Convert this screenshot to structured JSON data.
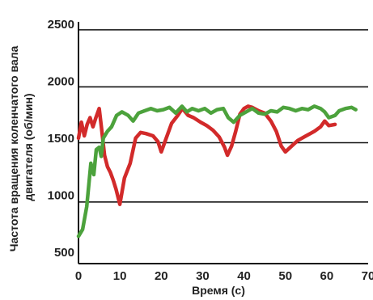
{
  "chart_data": {
    "type": "line",
    "xlabel": "Время (с)",
    "ylabel_lines": [
      "Частота вращения коленчатого вала",
      "двигателя (об/мин)"
    ],
    "xlim": [
      0,
      70
    ],
    "ylim": [
      400,
      2520
    ],
    "x_ticks": [
      0,
      10,
      20,
      30,
      40,
      50,
      60,
      70
    ],
    "y_tick_labels": [
      {
        "value": 2500,
        "label": "2500"
      },
      {
        "value": 2000,
        "label": "2000"
      },
      {
        "value": 1500,
        "label": "1500"
      },
      {
        "value": 1000,
        "label": "1000"
      },
      {
        "value": 500,
        "label": "500"
      }
    ],
    "gridlines": [
      2450,
      1950,
      1460,
      940
    ],
    "grid": true,
    "legend": "none",
    "series": [
      {
        "color": "#d22a2a",
        "points": [
          [
            0,
            1500
          ],
          [
            0.7,
            1640
          ],
          [
            1.4,
            1520
          ],
          [
            2.1,
            1620
          ],
          [
            2.8,
            1680
          ],
          [
            3.5,
            1600
          ],
          [
            4.2,
            1680
          ],
          [
            5.0,
            1760
          ],
          [
            5.6,
            1580
          ],
          [
            6.3,
            1350
          ],
          [
            7.0,
            1250
          ],
          [
            7.7,
            1200
          ],
          [
            8.4,
            1130
          ],
          [
            9.1,
            1050
          ],
          [
            10,
            920
          ],
          [
            11.1,
            1150
          ],
          [
            12.5,
            1280
          ],
          [
            13.8,
            1500
          ],
          [
            15,
            1550
          ],
          [
            16.3,
            1540
          ],
          [
            18,
            1520
          ],
          [
            19.2,
            1470
          ],
          [
            20,
            1380
          ],
          [
            21.1,
            1490
          ],
          [
            22.5,
            1630
          ],
          [
            24,
            1700
          ],
          [
            25.1,
            1760
          ],
          [
            26.5,
            1700
          ],
          [
            27.8,
            1680
          ],
          [
            29.5,
            1640
          ],
          [
            31,
            1610
          ],
          [
            32.5,
            1570
          ],
          [
            34,
            1510
          ],
          [
            35.3,
            1420
          ],
          [
            36,
            1350
          ],
          [
            37,
            1430
          ],
          [
            38,
            1560
          ],
          [
            39,
            1710
          ],
          [
            40,
            1760
          ],
          [
            41,
            1780
          ],
          [
            42,
            1770
          ],
          [
            43.5,
            1740
          ],
          [
            45,
            1720
          ],
          [
            46.5,
            1650
          ],
          [
            47.8,
            1560
          ],
          [
            49,
            1430
          ],
          [
            50,
            1380
          ],
          [
            51.5,
            1430
          ],
          [
            53,
            1480
          ],
          [
            55,
            1520
          ],
          [
            57,
            1560
          ],
          [
            58.5,
            1600
          ],
          [
            59.5,
            1650
          ],
          [
            60.5,
            1610
          ],
          [
            62,
            1620
          ]
        ]
      },
      {
        "color": "#4ca23c",
        "points": [
          [
            0,
            640
          ],
          [
            1,
            700
          ],
          [
            2,
            900
          ],
          [
            3,
            1280
          ],
          [
            3.7,
            1180
          ],
          [
            4.3,
            1400
          ],
          [
            5,
            1420
          ],
          [
            5.5,
            1340
          ],
          [
            6,
            1500
          ],
          [
            7,
            1560
          ],
          [
            8,
            1600
          ],
          [
            9.2,
            1700
          ],
          [
            10.5,
            1730
          ],
          [
            12,
            1700
          ],
          [
            13.2,
            1650
          ],
          [
            14.5,
            1720
          ],
          [
            16,
            1740
          ],
          [
            17.5,
            1760
          ],
          [
            19,
            1740
          ],
          [
            20.5,
            1750
          ],
          [
            22,
            1770
          ],
          [
            23.5,
            1720
          ],
          [
            25,
            1780
          ],
          [
            26.2,
            1730
          ],
          [
            27.5,
            1760
          ],
          [
            29,
            1740
          ],
          [
            30.5,
            1760
          ],
          [
            32,
            1720
          ],
          [
            33.5,
            1750
          ],
          [
            35,
            1760
          ],
          [
            36.2,
            1680
          ],
          [
            37.5,
            1640
          ],
          [
            39,
            1700
          ],
          [
            40.5,
            1730
          ],
          [
            42,
            1760
          ],
          [
            43.5,
            1720
          ],
          [
            45,
            1710
          ],
          [
            46.5,
            1740
          ],
          [
            48,
            1730
          ],
          [
            49.5,
            1770
          ],
          [
            51,
            1760
          ],
          [
            52.5,
            1740
          ],
          [
            54,
            1760
          ],
          [
            55.5,
            1750
          ],
          [
            57,
            1780
          ],
          [
            58.5,
            1760
          ],
          [
            59.5,
            1730
          ],
          [
            60.5,
            1680
          ],
          [
            62,
            1700
          ],
          [
            63,
            1740
          ],
          [
            64.5,
            1760
          ],
          [
            66,
            1770
          ],
          [
            67,
            1750
          ]
        ]
      }
    ]
  }
}
